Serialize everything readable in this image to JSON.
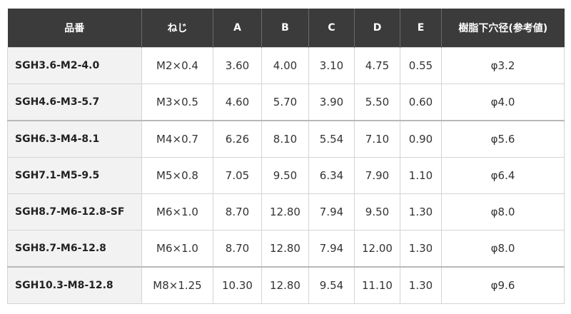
{
  "table": {
    "header": [
      "品番",
      "ねじ",
      "A",
      "B",
      "C",
      "D",
      "E",
      "樹脂下穴径(参考値)"
    ],
    "rows": [
      [
        "SGH3.6-M2-4.0",
        "M2×0.4",
        "3.60",
        "4.00",
        "3.10",
        "4.75",
        "0.55",
        "φ3.2"
      ],
      [
        "SGH4.6-M3-5.7",
        "M3×0.5",
        "4.60",
        "5.70",
        "3.90",
        "5.50",
        "0.60",
        "φ4.0"
      ],
      [
        "SGH6.3-M4-8.1",
        "M4×0.7",
        "6.26",
        "8.10",
        "5.54",
        "7.10",
        "0.90",
        "φ5.6"
      ],
      [
        "SGH7.1-M5-9.5",
        "M5×0.8",
        "7.05",
        "9.50",
        "6.34",
        "7.90",
        "1.10",
        "φ6.4"
      ],
      [
        "SGH8.7-M6-12.8-SF",
        "M6×1.0",
        "8.70",
        "12.80",
        "7.94",
        "9.50",
        "1.30",
        "φ8.0"
      ],
      [
        "SGH8.7-M6-12.8",
        "M6×1.0",
        "8.70",
        "12.80",
        "7.94",
        "12.00",
        "1.30",
        "φ8.0"
      ],
      [
        "SGH10.3-M8-12.8",
        "M8×1.25",
        "10.30",
        "12.80",
        "9.54",
        "11.10",
        "1.30",
        "φ9.6"
      ]
    ]
  }
}
